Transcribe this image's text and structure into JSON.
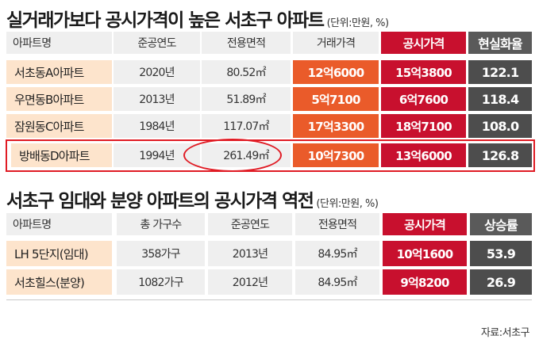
{
  "table1": {
    "title": "실거래가보다 공시가격이 높은 서초구 아파트",
    "unit": "(단위:만원, %)",
    "headers": [
      "아파트명",
      "준공연도",
      "전용면적",
      "거래가격",
      "공시가격",
      "현실화율"
    ],
    "rows": [
      [
        "서초동A아파트",
        "2020년",
        "80.52㎡",
        "12억6000",
        "15억3800",
        "122.1"
      ],
      [
        "우면동B아파트",
        "2013년",
        "51.89㎡",
        "5억7100",
        "6억7600",
        "118.4"
      ],
      [
        "잠원동C아파트",
        "1984년",
        "117.07㎡",
        "17억3300",
        "18억7100",
        "108.0"
      ],
      [
        "방배동D아파트",
        "1994년",
        "261.49㎡",
        "10억7300",
        "13억6000",
        "126.8"
      ]
    ]
  },
  "table2": {
    "title": "서초구 임대와 분양 아파트의 공시가격 역전",
    "unit": "(단위:만원, %)",
    "headers": [
      "아파트명",
      "총 가구수",
      "준공연도",
      "전용면적",
      "공시가격",
      "상승률"
    ],
    "rows": [
      [
        "LH 5단지(임대)",
        "358가구",
        "2013년",
        "84.95㎡",
        "10억1600",
        "53.9"
      ],
      [
        "서초힐스(분양)",
        "1082가구",
        "2012년",
        "84.95㎡",
        "9억8200",
        "26.9"
      ]
    ]
  },
  "source": "자료:서초구",
  "colors": {
    "orange": "#ea5b2a",
    "red": "#c8102e",
    "dark": "#4d4d4d",
    "name_bg": "#fde4cc",
    "header_bg": "#efefef",
    "highlight": "#e01b24"
  }
}
